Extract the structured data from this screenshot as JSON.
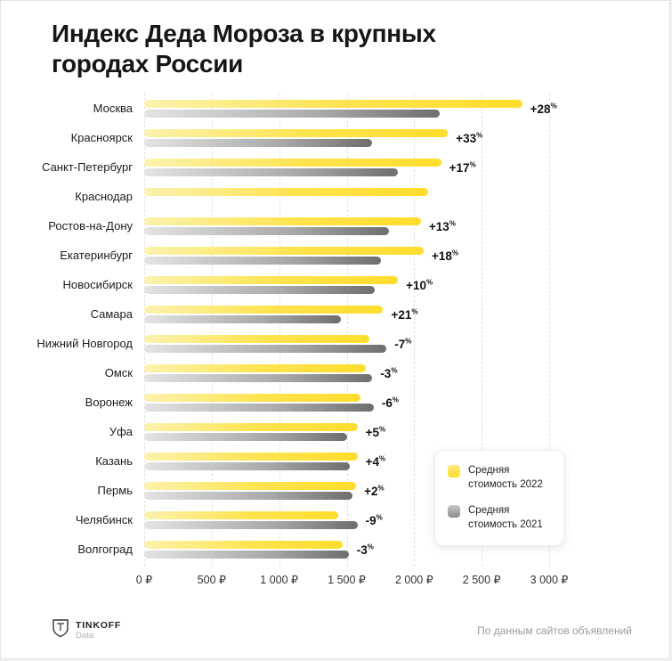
{
  "page": {
    "title": "Индекс Деда Мороза в крупных городах России"
  },
  "chart_data": {
    "type": "bar",
    "orientation": "horizontal",
    "title": "Индекс Деда Мороза в крупных городах России",
    "xlim": [
      0,
      3000
    ],
    "x_ticks": [
      "0 ₽",
      "500 ₽",
      "1 000 ₽",
      "1 500 ₽",
      "2 000 ₽",
      "2 500 ₽",
      "3 000 ₽"
    ],
    "categories": [
      "Москва",
      "Красноярск",
      "Санкт-Петербург",
      "Краснодар",
      "Ростов-на-Дону",
      "Екатеринбург",
      "Новосибирск",
      "Самара",
      "Нижний Новгород",
      "Омск",
      "Воронеж",
      "Уфа",
      "Казань",
      "Пермь",
      "Челябинск",
      "Волгоград"
    ],
    "series": [
      {
        "name": "Средняя стоимость 2022",
        "color": "#FFDD2D",
        "values": [
          2800,
          2250,
          2200,
          2100,
          2050,
          2070,
          1880,
          1770,
          1670,
          1640,
          1600,
          1580,
          1580,
          1570,
          1440,
          1470
        ]
      },
      {
        "name": "Средняя стоимость 2021",
        "color": "#8A8A8A",
        "values": [
          2190,
          1690,
          1880,
          null,
          1815,
          1755,
          1710,
          1460,
          1795,
          1690,
          1700,
          1505,
          1520,
          1540,
          1580,
          1515
        ]
      }
    ],
    "change_labels": [
      "+28%",
      "+33%",
      "+17%",
      "",
      "+13%",
      "+18%",
      "+10%",
      "+21%",
      "-7%",
      "-3%",
      "-6%",
      "+5%",
      "+4%",
      "+2%",
      "-9%",
      "-3%"
    ],
    "legend_position": "inside-right",
    "grid": "vertical-dashed"
  },
  "legend": {
    "items": [
      {
        "label": "Средняя стоимость 2022",
        "color": "#FFDD2D"
      },
      {
        "label": "Средняя стоимость 2021",
        "color": "#8A8A8A"
      }
    ]
  },
  "footer": {
    "brand": "TINKOFF",
    "brand_sub": "Data",
    "source": "По данным сайтов объявлений"
  }
}
